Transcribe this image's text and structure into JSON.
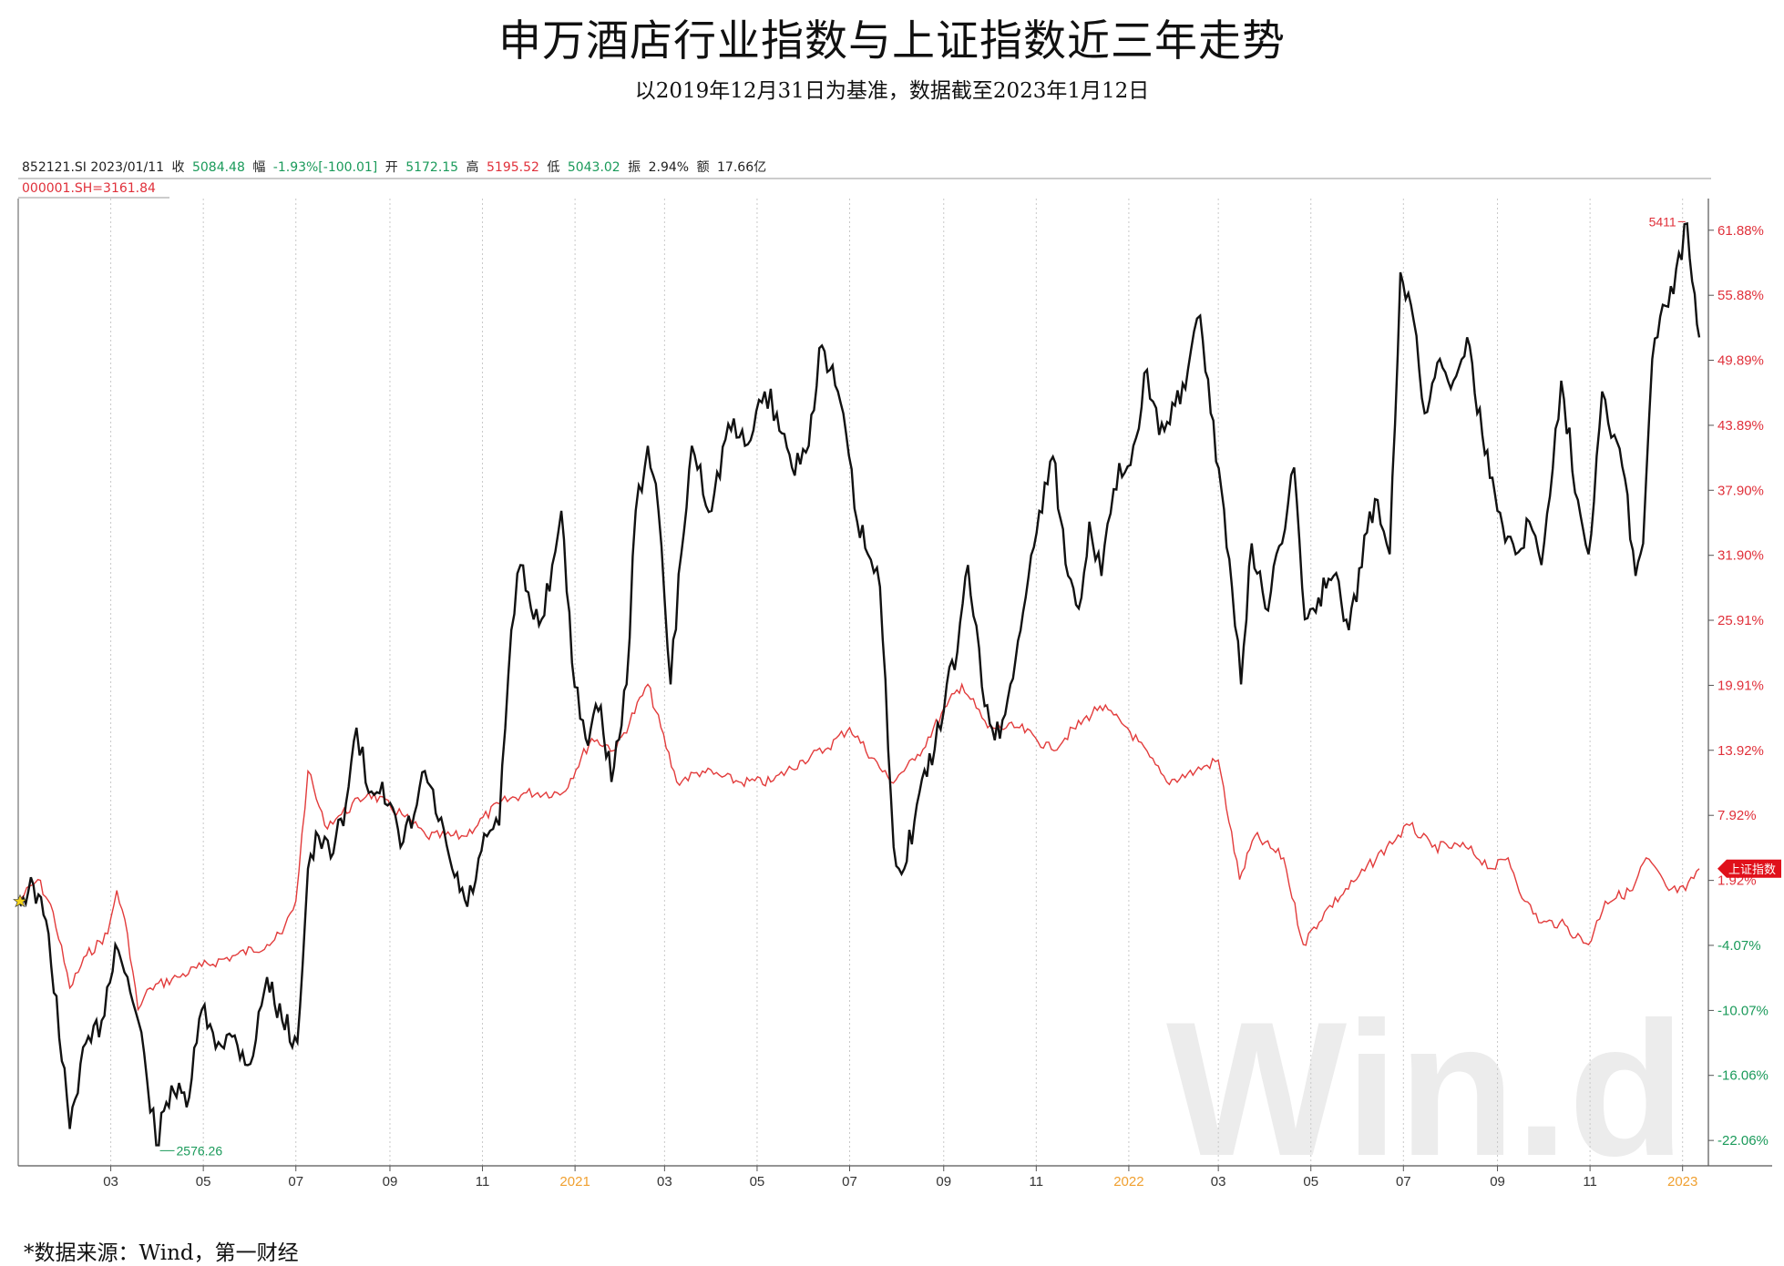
{
  "title": "申万酒店行业指数与上证指数近三年走势",
  "subtitle": "以2019年12月31日为基准，数据截至2023年1月12日",
  "info_bar": {
    "code": "852121.SI 2023/01/11",
    "close_label": "收",
    "close_value": "5084.48",
    "chg_label": "幅",
    "chg_value": "-1.93%[-100.01]",
    "open_label": "开",
    "open_value": "5172.15",
    "high_label": "高",
    "high_value": "5195.52",
    "low_label": "低",
    "low_value": "5043.02",
    "amp_label": "振",
    "amp_value": "2.94%",
    "amount_label": "额",
    "amount_value": "17.66亿"
  },
  "reference_label": "000001.SH=3161.84",
  "source_note": "*数据来源：Wind，第一财经",
  "watermark": "Win.d",
  "colors": {
    "hotel": "#111111",
    "sh": "#e23b3b",
    "grid": "#c8c8c8",
    "pos": "#e0303a",
    "neg": "#1a9a5a",
    "year": "#f0a030"
  },
  "chart_data": {
    "type": "line",
    "x_ticks": [
      {
        "date": "2020-03-01",
        "label": "03",
        "year": false
      },
      {
        "date": "2020-05-01",
        "label": "05",
        "year": false
      },
      {
        "date": "2020-07-01",
        "label": "07",
        "year": false
      },
      {
        "date": "2020-09-01",
        "label": "09",
        "year": false
      },
      {
        "date": "2020-11-01",
        "label": "11",
        "year": false
      },
      {
        "date": "2021-01-01",
        "label": "2021",
        "year": true
      },
      {
        "date": "2021-03-01",
        "label": "03",
        "year": false
      },
      {
        "date": "2021-05-01",
        "label": "05",
        "year": false
      },
      {
        "date": "2021-07-01",
        "label": "07",
        "year": false
      },
      {
        "date": "2021-09-01",
        "label": "09",
        "year": false
      },
      {
        "date": "2021-11-01",
        "label": "11",
        "year": false
      },
      {
        "date": "2022-01-01",
        "label": "2022",
        "year": true
      },
      {
        "date": "2022-03-01",
        "label": "03",
        "year": false
      },
      {
        "date": "2022-05-01",
        "label": "05",
        "year": false
      },
      {
        "date": "2022-07-01",
        "label": "07",
        "year": false
      },
      {
        "date": "2022-09-01",
        "label": "09",
        "year": false
      },
      {
        "date": "2022-11-01",
        "label": "11",
        "year": false
      },
      {
        "date": "2023-01-01",
        "label": "2023",
        "year": true
      }
    ],
    "x_range": [
      "2019-12-31",
      "2023-01-18"
    ],
    "y_ticks": [
      61.88,
      55.88,
      49.89,
      43.89,
      37.9,
      31.9,
      25.91,
      19.91,
      13.92,
      7.92,
      1.92,
      -4.07,
      -10.07,
      -16.06,
      -22.06
    ],
    "y_tick_labels": [
      "61.88%",
      "55.88%",
      "49.89%",
      "43.89%",
      "37.90%",
      "31.90%",
      "25.91%",
      "19.91%",
      "13.92%",
      "7.92%",
      "1.92%",
      "-4.07%",
      "-10.07%",
      "-16.06%",
      "-22.06%"
    ],
    "ylim": [
      -24.4,
      64.8
    ],
    "series": [
      {
        "name": "852121.SI",
        "color": "#111111",
        "points": [
          [
            "2019-12-31",
            0
          ],
          [
            "2020-01-10",
            1.5
          ],
          [
            "2020-01-20",
            -3
          ],
          [
            "2020-02-03",
            -21
          ],
          [
            "2020-02-10",
            -15
          ],
          [
            "2020-02-24",
            -11
          ],
          [
            "2020-03-04",
            -4
          ],
          [
            "2020-03-12",
            -7
          ],
          [
            "2020-03-23",
            -14
          ],
          [
            "2020-03-31",
            -22.5
          ],
          [
            "2020-04-10",
            -17
          ],
          [
            "2020-04-20",
            -19
          ],
          [
            "2020-04-30",
            -10
          ],
          [
            "2020-05-11",
            -13
          ],
          [
            "2020-05-20",
            -12.5
          ],
          [
            "2020-06-01",
            -15
          ],
          [
            "2020-06-12",
            -7
          ],
          [
            "2020-06-22",
            -11
          ],
          [
            "2020-07-02",
            -13
          ],
          [
            "2020-07-09",
            3
          ],
          [
            "2020-07-16",
            6
          ],
          [
            "2020-07-24",
            4
          ],
          [
            "2020-08-03",
            9
          ],
          [
            "2020-08-10",
            16
          ],
          [
            "2020-08-18",
            10
          ],
          [
            "2020-08-27",
            11
          ],
          [
            "2020-09-08",
            5
          ],
          [
            "2020-09-17",
            8
          ],
          [
            "2020-09-24",
            12
          ],
          [
            "2020-10-12",
            3
          ],
          [
            "2020-10-22",
            -0.5
          ],
          [
            "2020-11-04",
            6
          ],
          [
            "2020-11-12",
            7
          ],
          [
            "2020-11-20",
            25
          ],
          [
            "2020-11-26",
            31
          ],
          [
            "2020-12-03",
            27
          ],
          [
            "2020-12-10",
            26
          ],
          [
            "2020-12-17",
            31
          ],
          [
            "2020-12-23",
            36
          ],
          [
            "2020-12-30",
            22
          ],
          [
            "2021-01-08",
            15
          ],
          [
            "2021-01-18",
            18
          ],
          [
            "2021-01-25",
            11
          ],
          [
            "2021-02-04",
            20
          ],
          [
            "2021-02-10",
            36
          ],
          [
            "2021-02-18",
            42
          ],
          [
            "2021-02-25",
            36
          ],
          [
            "2021-03-05",
            20
          ],
          [
            "2021-03-12",
            32
          ],
          [
            "2021-03-19",
            42
          ],
          [
            "2021-04-01",
            36
          ],
          [
            "2021-04-12",
            44
          ],
          [
            "2021-04-23",
            42
          ],
          [
            "2021-05-06",
            47
          ],
          [
            "2021-05-14",
            45
          ],
          [
            "2021-05-24",
            40
          ],
          [
            "2021-06-04",
            42
          ],
          [
            "2021-06-11",
            51
          ],
          [
            "2021-06-18",
            49
          ],
          [
            "2021-06-25",
            46
          ],
          [
            "2021-07-06",
            35
          ],
          [
            "2021-07-13",
            32
          ],
          [
            "2021-07-21",
            29
          ],
          [
            "2021-07-30",
            5
          ],
          [
            "2021-08-06",
            3
          ],
          [
            "2021-08-16",
            10
          ],
          [
            "2021-08-26",
            14
          ],
          [
            "2021-09-03",
            20
          ],
          [
            "2021-09-10",
            23
          ],
          [
            "2021-09-17",
            31
          ],
          [
            "2021-09-28",
            18
          ],
          [
            "2021-10-08",
            15
          ],
          [
            "2021-10-15",
            20
          ],
          [
            "2021-10-25",
            28
          ],
          [
            "2021-11-03",
            36
          ],
          [
            "2021-11-12",
            41
          ],
          [
            "2021-11-22",
            30
          ],
          [
            "2021-11-29",
            27
          ],
          [
            "2021-12-06",
            35
          ],
          [
            "2021-12-14",
            30
          ],
          [
            "2021-12-22",
            38
          ],
          [
            "2022-01-04",
            42
          ],
          [
            "2022-01-13",
            49
          ],
          [
            "2022-01-21",
            43
          ],
          [
            "2022-01-28",
            44
          ],
          [
            "2022-02-09",
            49
          ],
          [
            "2022-02-17",
            54
          ],
          [
            "2022-02-24",
            45
          ],
          [
            "2022-03-03",
            38
          ],
          [
            "2022-03-10",
            29
          ],
          [
            "2022-03-16",
            20
          ],
          [
            "2022-03-23",
            33
          ],
          [
            "2022-04-01",
            27
          ],
          [
            "2022-04-12",
            33
          ],
          [
            "2022-04-20",
            40
          ],
          [
            "2022-04-27",
            26
          ],
          [
            "2022-05-06",
            28
          ],
          [
            "2022-05-16",
            30
          ],
          [
            "2022-05-26",
            25
          ],
          [
            "2022-06-07",
            34
          ],
          [
            "2022-06-14",
            37
          ],
          [
            "2022-06-22",
            32
          ],
          [
            "2022-06-29",
            58
          ],
          [
            "2022-07-06",
            55
          ],
          [
            "2022-07-15",
            45
          ],
          [
            "2022-07-25",
            50
          ],
          [
            "2022-08-03",
            48
          ],
          [
            "2022-08-12",
            52
          ],
          [
            "2022-08-22",
            43
          ],
          [
            "2022-09-01",
            36
          ],
          [
            "2022-09-13",
            32
          ],
          [
            "2022-09-22",
            35
          ],
          [
            "2022-09-30",
            31
          ],
          [
            "2022-10-13",
            48
          ],
          [
            "2022-10-24",
            37
          ],
          [
            "2022-10-31",
            32
          ],
          [
            "2022-11-09",
            47
          ],
          [
            "2022-11-17",
            43
          ],
          [
            "2022-11-24",
            39
          ],
          [
            "2022-12-01",
            30
          ],
          [
            "2022-12-06",
            33
          ],
          [
            "2022-12-12",
            50
          ],
          [
            "2022-12-19",
            55
          ],
          [
            "2022-12-26",
            56
          ],
          [
            "2023-01-04",
            62.5
          ],
          [
            "2023-01-09",
            56
          ],
          [
            "2023-01-12",
            52
          ]
        ]
      },
      {
        "name": "000001.SH",
        "color": "#e23b3b",
        "points": [
          [
            "2019-12-31",
            0
          ],
          [
            "2020-01-13",
            2
          ],
          [
            "2020-01-23",
            -1
          ],
          [
            "2020-02-03",
            -8
          ],
          [
            "2020-02-14",
            -5
          ],
          [
            "2020-02-28",
            -3
          ],
          [
            "2020-03-05",
            1
          ],
          [
            "2020-03-12",
            -3
          ],
          [
            "2020-03-19",
            -10
          ],
          [
            "2020-03-27",
            -8
          ],
          [
            "2020-04-14",
            -7
          ],
          [
            "2020-04-30",
            -6
          ],
          [
            "2020-05-22",
            -5
          ],
          [
            "2020-06-12",
            -4
          ],
          [
            "2020-06-22",
            -3
          ],
          [
            "2020-07-01",
            0
          ],
          [
            "2020-07-09",
            12
          ],
          [
            "2020-07-20",
            7
          ],
          [
            "2020-07-31",
            8
          ],
          [
            "2020-08-18",
            10
          ],
          [
            "2020-09-09",
            8
          ],
          [
            "2020-09-25",
            6
          ],
          [
            "2020-10-20",
            6
          ],
          [
            "2020-11-12",
            9
          ],
          [
            "2020-11-30",
            10
          ],
          [
            "2020-12-24",
            10
          ],
          [
            "2021-01-12",
            15
          ],
          [
            "2021-01-28",
            14
          ],
          [
            "2021-02-18",
            20
          ],
          [
            "2021-03-09",
            11
          ],
          [
            "2021-03-26",
            12
          ],
          [
            "2021-04-19",
            11
          ],
          [
            "2021-05-10",
            11
          ],
          [
            "2021-05-31",
            13
          ],
          [
            "2021-06-15",
            14
          ],
          [
            "2021-07-01",
            16
          ],
          [
            "2021-07-28",
            11
          ],
          [
            "2021-08-13",
            13
          ],
          [
            "2021-09-03",
            18
          ],
          [
            "2021-09-13",
            20
          ],
          [
            "2021-09-30",
            16
          ],
          [
            "2021-10-21",
            16
          ],
          [
            "2021-11-11",
            14
          ],
          [
            "2021-12-13",
            18
          ],
          [
            "2021-12-31",
            16
          ],
          [
            "2022-01-26",
            11
          ],
          [
            "2022-02-14",
            12
          ],
          [
            "2022-03-01",
            13
          ],
          [
            "2022-03-15",
            2
          ],
          [
            "2022-03-25",
            6
          ],
          [
            "2022-04-13",
            4
          ],
          [
            "2022-04-26",
            -4
          ],
          [
            "2022-05-10",
            -1
          ],
          [
            "2022-05-31",
            2
          ],
          [
            "2022-06-20",
            5
          ],
          [
            "2022-07-05",
            7
          ],
          [
            "2022-07-20",
            5
          ],
          [
            "2022-08-11",
            5
          ],
          [
            "2022-08-29",
            3
          ],
          [
            "2022-09-08",
            4
          ],
          [
            "2022-09-19",
            0
          ],
          [
            "2022-09-30",
            -2
          ],
          [
            "2022-10-12",
            -2
          ],
          [
            "2022-10-31",
            -4
          ],
          [
            "2022-11-11",
            0
          ],
          [
            "2022-11-29",
            1
          ],
          [
            "2022-12-08",
            4
          ],
          [
            "2022-12-23",
            1
          ],
          [
            "2023-01-03",
            1
          ],
          [
            "2023-01-12",
            3
          ]
        ]
      }
    ],
    "annotations": [
      {
        "text": "5411",
        "series": "852121.SI",
        "x": "2023-01-04",
        "kind": "max"
      },
      {
        "text": "2576.26",
        "series": "852121.SI",
        "x": "2020-03-31",
        "kind": "min"
      }
    ],
    "series_flag": "上证指数"
  }
}
